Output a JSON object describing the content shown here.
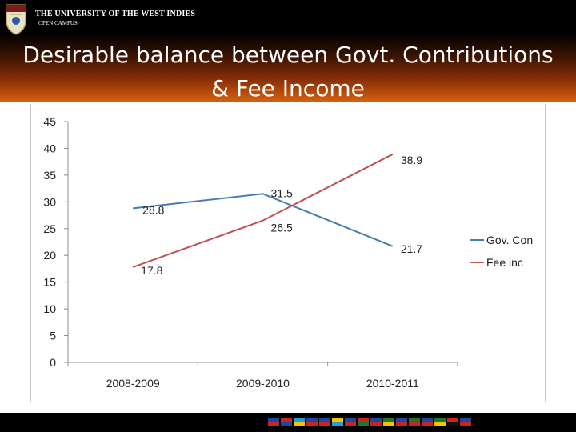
{
  "header": {
    "university": "THE UNIVERSITY OF THE WEST INDIES",
    "campus": "OPEN CAMPUS",
    "title_line1": "Desirable balance between Govt. Contributions",
    "title_line2": "& Fee Income"
  },
  "chart_data": {
    "type": "line",
    "categories": [
      "2008-2009",
      "2009-2010",
      "2010-2011"
    ],
    "series": [
      {
        "name": "Gov. Con",
        "values": [
          28.8,
          31.5,
          21.7
        ],
        "color": "#4a7ab5"
      },
      {
        "name": "Fee inc",
        "values": [
          17.8,
          26.5,
          38.9
        ],
        "color": "#c0504d"
      }
    ],
    "ylim": [
      0,
      45
    ],
    "yticks": [
      0,
      5,
      10,
      15,
      20,
      25,
      30,
      35,
      40,
      45
    ],
    "gridlines": false,
    "legend": "right"
  },
  "footer": {
    "flags": [
      [
        "#1a4aa0",
        "#cc2222"
      ],
      [
        "#cc2222",
        "#1a4aa0"
      ],
      [
        "#2a9adf",
        "#f5c400"
      ],
      [
        "#1a4aa0",
        "#cc2222"
      ],
      [
        "#1a4aa0",
        "#cc2222"
      ],
      [
        "#f5c400",
        "#2a9adf"
      ],
      [
        "#1a4aa0",
        "#cc2222"
      ],
      [
        "#cc2222",
        "#1a7a2a"
      ],
      [
        "#1a4aa0",
        "#cc2222"
      ],
      [
        "#1a7a2a",
        "#f5c400"
      ],
      [
        "#1a4aa0",
        "#cc2222"
      ],
      [
        "#1a7a2a",
        "#cc2222"
      ],
      [
        "#1a4aa0",
        "#cc2222"
      ],
      [
        "#1a7a2a",
        "#f5c400"
      ],
      [
        "#cc2222",
        "#111111"
      ],
      [
        "#1a4aa0",
        "#cc2222"
      ]
    ]
  }
}
